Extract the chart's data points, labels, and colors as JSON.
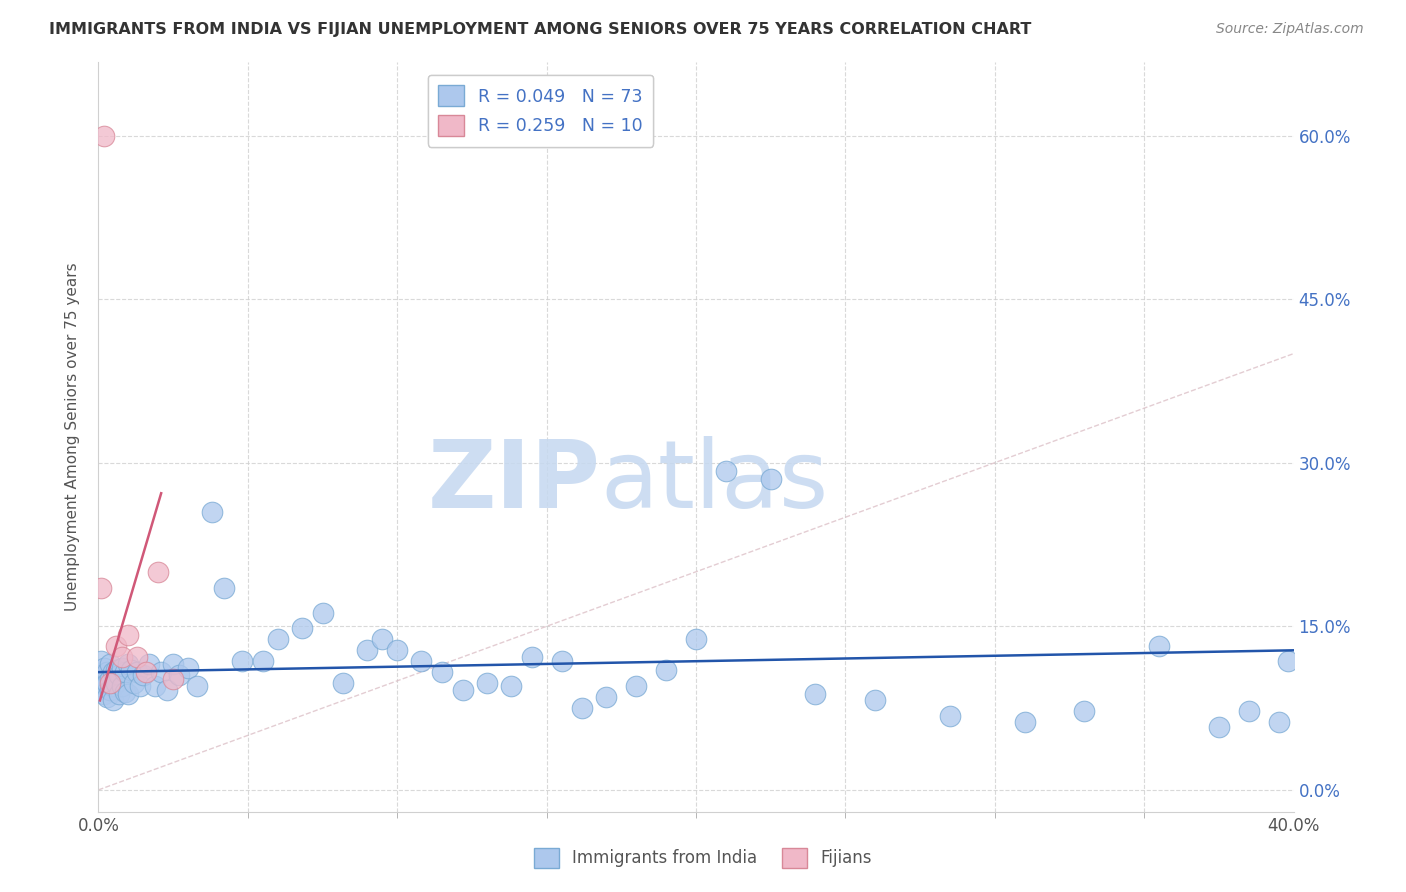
{
  "title": "IMMIGRANTS FROM INDIA VS FIJIAN UNEMPLOYMENT AMONG SENIORS OVER 75 YEARS CORRELATION CHART",
  "source": "Source: ZipAtlas.com",
  "ylabel": "Unemployment Among Seniors over 75 years",
  "xlim": [
    0.0,
    0.4
  ],
  "ylim": [
    -0.02,
    0.667
  ],
  "xticks": [
    0.0,
    0.4
  ],
  "xtick_labels": [
    "0.0%",
    "40.0%"
  ],
  "yticks": [
    0.0,
    0.15,
    0.3,
    0.45,
    0.6
  ],
  "ytick_labels": [
    "0.0%",
    "15.0%",
    "30.0%",
    "45.0%",
    "60.0%"
  ],
  "india_color": "#adc8ed",
  "india_edge_color": "#7aaad4",
  "fijian_color": "#f0b8c8",
  "fijian_edge_color": "#d88898",
  "india_R": 0.049,
  "india_N": 73,
  "fijian_R": 0.259,
  "fijian_N": 10,
  "india_trend_color": "#2255aa",
  "fijian_trend_color": "#d05878",
  "diagonal_color": "#cccccc",
  "watermark_zip": "ZIP",
  "watermark_atlas": "atlas",
  "watermark_color": "#c5d8f0",
  "legend_india_label": "Immigrants from India",
  "legend_fijian_label": "Fijians",
  "india_x": [
    0.001,
    0.001,
    0.001,
    0.002,
    0.002,
    0.002,
    0.003,
    0.003,
    0.003,
    0.004,
    0.004,
    0.004,
    0.005,
    0.005,
    0.005,
    0.006,
    0.006,
    0.007,
    0.007,
    0.008,
    0.008,
    0.009,
    0.009,
    0.01,
    0.01,
    0.011,
    0.012,
    0.013,
    0.014,
    0.015,
    0.017,
    0.019,
    0.021,
    0.023,
    0.025,
    0.027,
    0.03,
    0.033,
    0.038,
    0.042,
    0.048,
    0.055,
    0.06,
    0.068,
    0.075,
    0.082,
    0.09,
    0.095,
    0.1,
    0.108,
    0.115,
    0.122,
    0.13,
    0.138,
    0.145,
    0.155,
    0.162,
    0.17,
    0.18,
    0.19,
    0.2,
    0.21,
    0.225,
    0.24,
    0.26,
    0.285,
    0.31,
    0.33,
    0.355,
    0.375,
    0.385,
    0.395,
    0.398
  ],
  "india_y": [
    0.118,
    0.105,
    0.095,
    0.112,
    0.1,
    0.088,
    0.108,
    0.098,
    0.085,
    0.115,
    0.102,
    0.092,
    0.108,
    0.095,
    0.082,
    0.11,
    0.098,
    0.105,
    0.088,
    0.112,
    0.095,
    0.108,
    0.09,
    0.115,
    0.088,
    0.11,
    0.098,
    0.108,
    0.095,
    0.105,
    0.115,
    0.095,
    0.108,
    0.092,
    0.115,
    0.105,
    0.112,
    0.095,
    0.255,
    0.185,
    0.118,
    0.118,
    0.138,
    0.148,
    0.162,
    0.098,
    0.128,
    0.138,
    0.128,
    0.118,
    0.108,
    0.092,
    0.098,
    0.095,
    0.122,
    0.118,
    0.075,
    0.085,
    0.095,
    0.11,
    0.138,
    0.292,
    0.285,
    0.088,
    0.082,
    0.068,
    0.062,
    0.072,
    0.132,
    0.058,
    0.072,
    0.062,
    0.118
  ],
  "fijian_x": [
    0.001,
    0.002,
    0.004,
    0.006,
    0.008,
    0.01,
    0.013,
    0.016,
    0.02,
    0.025
  ],
  "fijian_y": [
    0.185,
    0.6,
    0.098,
    0.132,
    0.122,
    0.142,
    0.122,
    0.108,
    0.2,
    0.102
  ],
  "india_trend_x0": 0.0,
  "india_trend_x1": 0.4,
  "india_trend_y0": 0.108,
  "india_trend_y1": 0.128,
  "fijian_trend_x0": 0.0005,
  "fijian_trend_x1": 0.021,
  "fijian_trend_y0": 0.082,
  "fijian_trend_y1": 0.272,
  "grid_yticks": [
    0.0,
    0.15,
    0.3,
    0.45,
    0.6
  ],
  "grid_xticks_minor": [
    0.05,
    0.1,
    0.15,
    0.2,
    0.25,
    0.3,
    0.35
  ]
}
